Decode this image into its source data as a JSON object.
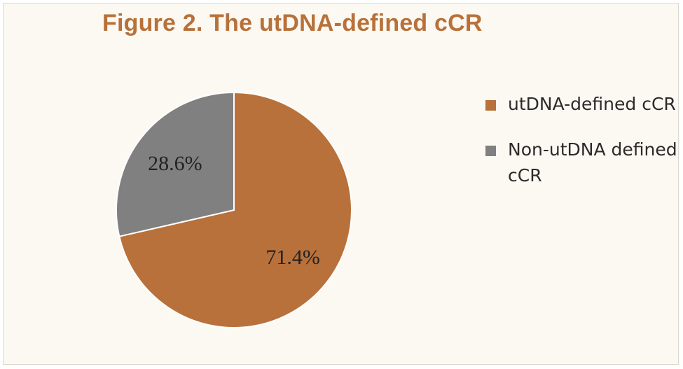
{
  "chart_data": {
    "type": "pie",
    "title": "Figure 2. The utDNA-defined cCR",
    "slices": [
      {
        "name": "utDNA-defined cCR",
        "value": 71.4,
        "label": "71.4%",
        "color": "#b8713a"
      },
      {
        "name": "Non-utDNA defined cCR",
        "value": 28.6,
        "label": "28.6%",
        "color": "#808080"
      }
    ],
    "legend": {
      "placement": "right",
      "entries": [
        {
          "label": "utDNA-defined cCR",
          "color": "#b8713a"
        },
        {
          "label": "Non-utDNA defined cCR",
          "color": "#808080"
        }
      ]
    }
  }
}
